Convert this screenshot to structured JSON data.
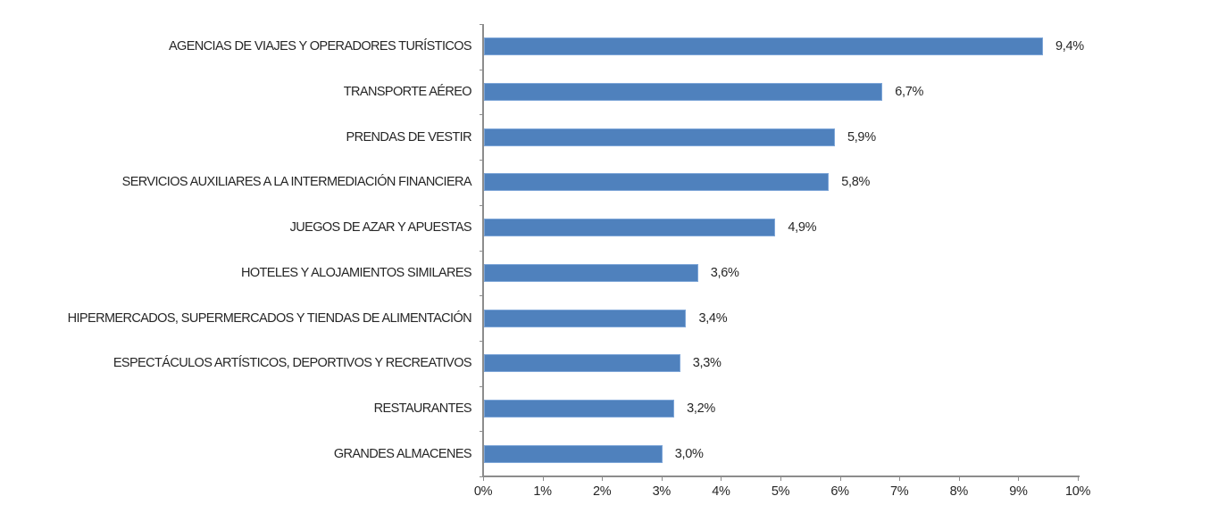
{
  "chart_data": {
    "type": "bar",
    "orientation": "horizontal",
    "title": "",
    "xlabel": "",
    "ylabel": "",
    "xlim": [
      0,
      10
    ],
    "x_ticks": [
      "0%",
      "1%",
      "2%",
      "3%",
      "4%",
      "5%",
      "6%",
      "7%",
      "8%",
      "9%",
      "10%"
    ],
    "grid": false,
    "legend": null,
    "bar_color": "#4f81bd",
    "categories": [
      "AGENCIAS DE VIAJES Y OPERADORES TURÍSTICOS",
      "TRANSPORTE AÉREO",
      "PRENDAS DE VESTIR",
      "SERVICIOS AUXILIARES A LA INTERMEDIACIÓN FINANCIERA",
      "JUEGOS DE AZAR Y APUESTAS",
      "HOTELES  Y ALOJAMIENTOS SIMILARES",
      "HIPERMERCADOS, SUPERMERCADOS Y TIENDAS DE ALIMENTACIÓN",
      "ESPECTÁCULOS ARTÍSTICOS, DEPORTIVOS Y RECREATIVOS",
      "RESTAURANTES",
      "GRANDES ALMACENES"
    ],
    "values": [
      9.4,
      6.7,
      5.9,
      5.8,
      4.9,
      3.6,
      3.4,
      3.3,
      3.2,
      3.0
    ],
    "value_labels": [
      "9,4%",
      "6,7%",
      "5,9%",
      "5,8%",
      "4,9%",
      "3,6%",
      "3,4%",
      "3,3%",
      "3,2%",
      "3,0%"
    ]
  }
}
